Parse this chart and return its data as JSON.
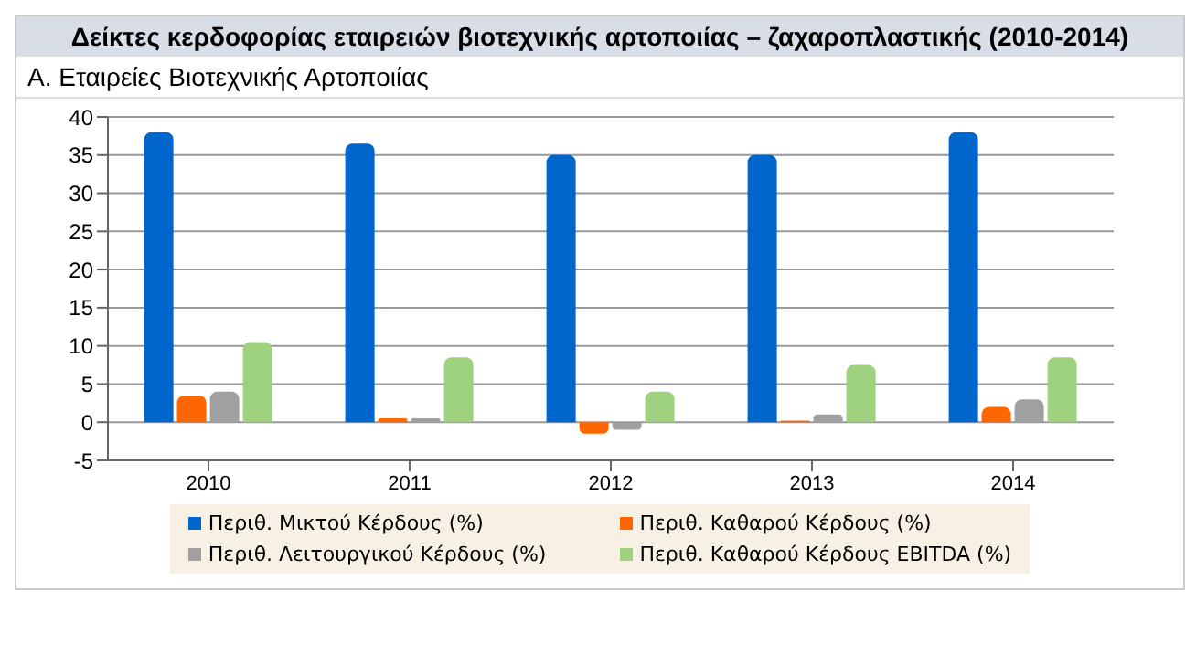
{
  "chart_data": {
    "type": "bar",
    "title": "Δείκτες κερδοφορίας εταιρειών βιοτεχνικής αρτοποιίας – ζαχαροπλαστικής (2010-2014)",
    "subtitle": "Α. Εταιρείες Βιοτεχνικής Αρτοποιίας",
    "categories": [
      "2010",
      "2011",
      "2012",
      "2013",
      "2014"
    ],
    "series": [
      {
        "name": "Περιθ. Μικτού Κέρδους (%)",
        "color": "#0066cc",
        "values": [
          38,
          36.5,
          35,
          35,
          38
        ]
      },
      {
        "name": "Περιθ. Καθαρού Κέρδους (%)",
        "color": "#ff6600",
        "values": [
          3.5,
          0.5,
          -1.5,
          0.2,
          2
        ]
      },
      {
        "name": "Περιθ. Λειτουργικού Κέρδους (%)",
        "color": "#a0a0a0",
        "values": [
          4,
          0.5,
          -1,
          1,
          3
        ]
      },
      {
        "name": "Περιθ. Καθαρού Κέρδους EBITDA (%)",
        "color": "#9fd27f",
        "values": [
          10.5,
          8.5,
          4,
          7.5,
          8.5
        ]
      }
    ],
    "ylim": [
      -5,
      40
    ],
    "yticks": [
      -5,
      0,
      5,
      10,
      15,
      20,
      25,
      30,
      35,
      40
    ],
    "grid": "y",
    "legend": "bottom"
  }
}
